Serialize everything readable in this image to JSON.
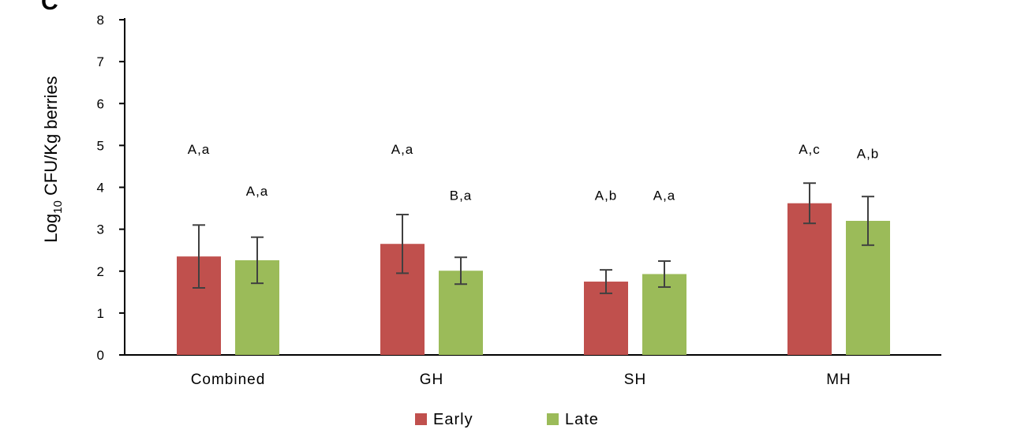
{
  "panel_letter": "C",
  "colors": {
    "early": "#c0504d",
    "late": "#9bbb59",
    "error": "#404040",
    "axis": "#000000"
  },
  "chart_data": {
    "type": "bar",
    "ylabel_prefix": "Log",
    "ylabel_subscript": "10",
    "ylabel_suffix": " CFU/Kg berries",
    "ylim": [
      0,
      8
    ],
    "yticks": [
      "0",
      "1",
      "2",
      "3",
      "4",
      "5",
      "6",
      "7",
      "8"
    ],
    "categories": [
      "Combined",
      "GH",
      "SH",
      "MH"
    ],
    "series": [
      {
        "name": "Early",
        "values": [
          2.35,
          2.65,
          1.75,
          3.62
        ],
        "errors": [
          0.75,
          0.7,
          0.28,
          0.48
        ],
        "annotations": [
          "A,a",
          "A,a",
          "A,b",
          "A,c"
        ],
        "annotation_y": [
          4.8,
          4.8,
          3.7,
          4.8
        ]
      },
      {
        "name": "Late",
        "values": [
          2.26,
          2.01,
          1.93,
          3.2
        ],
        "errors": [
          0.55,
          0.32,
          0.31,
          0.58
        ],
        "annotations": [
          "A,a",
          "B,a",
          "A,a",
          "A,b"
        ],
        "annotation_y": [
          3.8,
          3.7,
          3.7,
          4.7
        ]
      }
    ],
    "legend": [
      "Early",
      "Late"
    ],
    "legend_position": "bottom",
    "grid": false
  }
}
